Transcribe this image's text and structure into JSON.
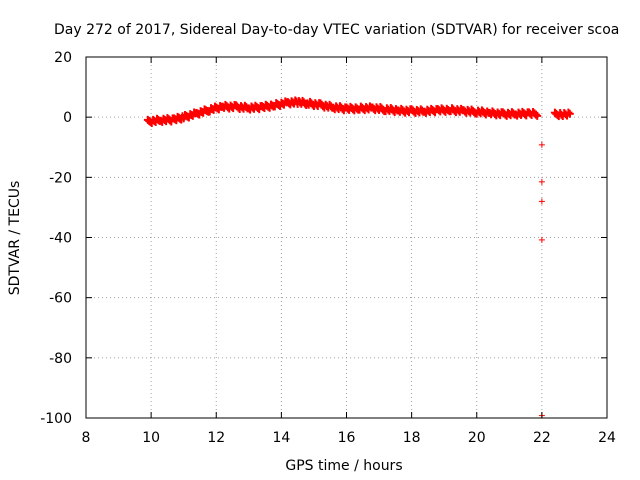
{
  "chart_data": {
    "type": "scatter",
    "title": "Day 272 of 2017, Sidereal Day-to-day VTEC variation (SDTVAR) for receiver scoa",
    "xlabel": "GPS time / hours",
    "ylabel": "SDTVAR / TECUs",
    "xlim": [
      8,
      24
    ],
    "ylim": [
      -100,
      20
    ],
    "xticks": [
      8,
      10,
      12,
      14,
      16,
      18,
      20,
      22,
      24
    ],
    "yticks": [
      20,
      0,
      -20,
      -40,
      -60,
      -80,
      -100
    ],
    "grid": true,
    "marker": "+",
    "series": [
      {
        "name": "SDTVAR",
        "color": "#ff0000",
        "trend": [
          [
            9.9,
            -1.5
          ],
          [
            10.3,
            -1.0
          ],
          [
            10.7,
            -0.8
          ],
          [
            11.0,
            0.0
          ],
          [
            11.4,
            1.2
          ],
          [
            11.8,
            2.5
          ],
          [
            12.2,
            3.5
          ],
          [
            12.6,
            3.4
          ],
          [
            13.0,
            3.1
          ],
          [
            13.4,
            3.3
          ],
          [
            13.8,
            4.0
          ],
          [
            14.2,
            4.8
          ],
          [
            14.5,
            5.0
          ],
          [
            14.8,
            4.6
          ],
          [
            15.2,
            4.0
          ],
          [
            15.6,
            3.3
          ],
          [
            16.0,
            2.8
          ],
          [
            16.4,
            2.9
          ],
          [
            16.8,
            3.0
          ],
          [
            17.2,
            2.6
          ],
          [
            17.6,
            2.2
          ],
          [
            18.0,
            2.0
          ],
          [
            18.4,
            2.0
          ],
          [
            18.8,
            2.3
          ],
          [
            19.2,
            2.4
          ],
          [
            19.6,
            2.1
          ],
          [
            20.0,
            1.8
          ],
          [
            20.4,
            1.4
          ],
          [
            20.8,
            1.0
          ],
          [
            21.2,
            1.1
          ],
          [
            21.6,
            1.2
          ],
          [
            21.9,
            1.0
          ]
        ],
        "trend_late": [
          [
            22.4,
            0.9
          ],
          [
            22.6,
            1.0
          ],
          [
            22.9,
            0.9
          ]
        ],
        "outliers": [
          [
            22.0,
            -9.2
          ],
          [
            22.0,
            -21.5
          ],
          [
            22.0,
            -28.0
          ],
          [
            22.0,
            -40.8
          ],
          [
            22.0,
            -99.2
          ]
        ]
      }
    ]
  }
}
